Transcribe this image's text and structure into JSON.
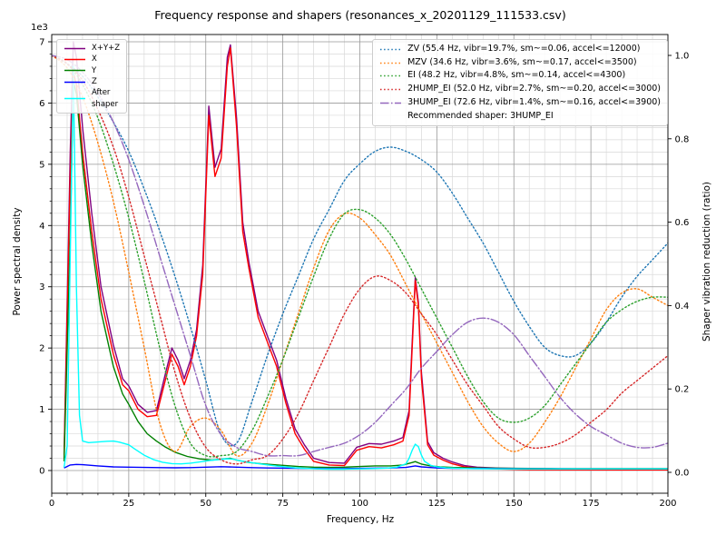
{
  "chart_data": {
    "type": "line",
    "title": "Frequency response and shapers (resonances_x_20201129_111533.csv)",
    "xlabel": "Frequency, Hz",
    "ylabel": "Power spectral density",
    "ylabel_right": "Shaper vibration reduction (ratio)",
    "y_offset_label": "1e3",
    "xlim": [
      0,
      200
    ],
    "ylim_left": [
      0,
      7000
    ],
    "ylim_right": [
      0,
      1.0
    ],
    "x_ticks": [
      0,
      25,
      50,
      75,
      100,
      125,
      150,
      175,
      200
    ],
    "x_minor_step": 5,
    "y_ticks_left": [
      0,
      1,
      2,
      3,
      4,
      5,
      6,
      7
    ],
    "y_left_scale": 1000,
    "y_minor_step_left": 200,
    "y_ticks_right": [
      "0.0",
      "0.2",
      "0.4",
      "0.6",
      "0.8",
      "1.0"
    ],
    "grid": {
      "major_color": "#989898",
      "minor_color": "#d9d9d9"
    },
    "legend_right_note": "Recommended shaper: 3HUMP_EI",
    "psd_series": [
      {
        "name": "sum",
        "label": "X+Y+Z",
        "color": "purple",
        "style": "solid",
        "x": [
          4,
          6,
          7,
          8,
          10,
          13,
          16,
          20,
          23,
          25,
          28,
          31,
          34,
          37,
          39,
          41,
          43,
          45,
          47,
          49,
          51,
          53,
          55,
          57,
          58,
          60,
          62,
          64,
          67,
          70,
          73,
          76,
          79,
          82,
          85,
          90,
          95,
          99,
          103,
          107,
          111,
          114,
          116,
          117,
          118,
          119,
          120,
          122,
          124,
          127,
          130,
          134,
          138,
          145,
          155,
          170,
          185,
          200
        ],
        "y": [
          260,
          5200,
          7000,
          6750,
          5600,
          4200,
          3000,
          2050,
          1500,
          1380,
          1080,
          950,
          980,
          1600,
          2000,
          1800,
          1500,
          1800,
          2300,
          3350,
          5950,
          4950,
          5250,
          6750,
          6950,
          5750,
          4050,
          3400,
          2600,
          2200,
          1800,
          1180,
          680,
          420,
          200,
          130,
          120,
          380,
          440,
          430,
          480,
          540,
          980,
          2100,
          3150,
          2750,
          1600,
          470,
          290,
          200,
          140,
          80,
          55,
          40,
          30,
          25,
          20,
          20
        ]
      },
      {
        "name": "x",
        "label": "X",
        "color": "red",
        "style": "solid",
        "x": [
          4,
          6,
          7,
          8,
          10,
          13,
          16,
          20,
          23,
          25,
          28,
          31,
          34,
          37,
          39,
          41,
          43,
          45,
          47,
          49,
          51,
          53,
          55,
          57,
          58,
          60,
          62,
          64,
          67,
          70,
          73,
          76,
          79,
          82,
          85,
          90,
          95,
          99,
          103,
          107,
          111,
          114,
          116,
          117,
          118,
          119,
          120,
          122,
          124,
          127,
          130,
          134,
          138,
          145,
          155,
          170,
          185,
          200
        ],
        "y": [
          200,
          4800,
          6500,
          6300,
          5200,
          3900,
          2800,
          1900,
          1400,
          1300,
          1000,
          880,
          900,
          1500,
          1900,
          1700,
          1400,
          1700,
          2200,
          3200,
          5800,
          4800,
          5100,
          6600,
          6900,
          5600,
          3900,
          3300,
          2500,
          2100,
          1700,
          1100,
          600,
          350,
          150,
          90,
          80,
          330,
          390,
          370,
          420,
          480,
          900,
          2000,
          3100,
          2700,
          1500,
          420,
          250,
          170,
          110,
          60,
          40,
          25,
          15,
          12,
          10,
          10
        ]
      },
      {
        "name": "y",
        "label": "Y",
        "color": "green",
        "style": "solid",
        "x": [
          4,
          6,
          7,
          8,
          10,
          13,
          16,
          20,
          23,
          25,
          28,
          31,
          34,
          37,
          40,
          44,
          48,
          52,
          56,
          58,
          60,
          64,
          68,
          72,
          76,
          80,
          85,
          90,
          95,
          100,
          105,
          110,
          114,
          117,
          118,
          120,
          123,
          126,
          130,
          140,
          150,
          165,
          180,
          200
        ],
        "y": [
          150,
          3800,
          6350,
          6150,
          5000,
          3700,
          2600,
          1700,
          1250,
          1080,
          800,
          600,
          480,
          380,
          300,
          230,
          190,
          170,
          190,
          200,
          170,
          130,
          110,
          95,
          80,
          65,
          55,
          50,
          55,
          65,
          75,
          75,
          90,
          130,
          145,
          105,
          75,
          60,
          50,
          40,
          35,
          30,
          30,
          30
        ]
      },
      {
        "name": "z",
        "label": "Z",
        "color": "blue",
        "style": "solid",
        "x": [
          4,
          6,
          8,
          10,
          15,
          20,
          25,
          30,
          35,
          40,
          45,
          50,
          55,
          60,
          65,
          70,
          80,
          90,
          100,
          110,
          115,
          118,
          120,
          125,
          130,
          140,
          155,
          170,
          185,
          200
        ],
        "y": [
          40,
          90,
          100,
          95,
          75,
          60,
          55,
          50,
          48,
          45,
          48,
          55,
          62,
          55,
          48,
          42,
          35,
          30,
          35,
          42,
          50,
          75,
          60,
          42,
          36,
          32,
          28,
          26,
          25,
          25
        ]
      },
      {
        "name": "after_shaper",
        "label": "After\nshaper",
        "color": "cyan",
        "style": "solid",
        "x": [
          4,
          5,
          6,
          7,
          8,
          9,
          10,
          12,
          15,
          18,
          20,
          22,
          25,
          27,
          30,
          33,
          36,
          39,
          42,
          45,
          48,
          51,
          54,
          57,
          59,
          61,
          64,
          67,
          70,
          73,
          76,
          79,
          82,
          86,
          90,
          95,
          100,
          105,
          109,
          112,
          115,
          116,
          117,
          118,
          119,
          120,
          121,
          123,
          125,
          128,
          132,
          137,
          145,
          155,
          170,
          185,
          200
        ],
        "y": [
          50,
          400,
          3500,
          6600,
          3000,
          900,
          480,
          455,
          465,
          478,
          480,
          462,
          420,
          350,
          250,
          180,
          135,
          112,
          108,
          120,
          140,
          162,
          178,
          193,
          185,
          160,
          135,
          112,
          92,
          72,
          58,
          45,
          36,
          27,
          22,
          22,
          27,
          33,
          40,
          55,
          110,
          200,
          330,
          430,
          390,
          250,
          150,
          85,
          60,
          45,
          35,
          30,
          27,
          25,
          25,
          25,
          25
        ]
      }
    ],
    "shaper_x": [
      0,
      5,
      10,
      15,
      20,
      25,
      30,
      35,
      40,
      45,
      50,
      55,
      60,
      65,
      70,
      75,
      80,
      85,
      90,
      95,
      100,
      105,
      110,
      115,
      120,
      125,
      130,
      135,
      140,
      145,
      150,
      155,
      160,
      165,
      170,
      175,
      180,
      185,
      190,
      195,
      200
    ],
    "shaper_series": [
      {
        "name": "ZV",
        "label": "ZV (55.4 Hz, vibr=19.7%, sm~=0.06, accel<=12000)",
        "color": "#1f77b4",
        "style": "dotted",
        "y": [
          1.0,
          0.98,
          0.95,
          0.9,
          0.84,
          0.77,
          0.68,
          0.58,
          0.47,
          0.35,
          0.22,
          0.09,
          0.07,
          0.17,
          0.28,
          0.38,
          0.47,
          0.56,
          0.63,
          0.7,
          0.74,
          0.77,
          0.78,
          0.77,
          0.75,
          0.72,
          0.67,
          0.61,
          0.55,
          0.48,
          0.41,
          0.35,
          0.3,
          0.28,
          0.28,
          0.31,
          0.36,
          0.42,
          0.47,
          0.51,
          0.55
        ]
      },
      {
        "name": "MZV",
        "label": "MZV (34.6 Hz, vibr=3.6%, sm~=0.17, accel<=3500)",
        "color": "#ff7f0e",
        "style": "dotted",
        "y": [
          1.0,
          0.97,
          0.9,
          0.79,
          0.65,
          0.48,
          0.3,
          0.12,
          0.05,
          0.11,
          0.13,
          0.1,
          0.04,
          0.07,
          0.16,
          0.27,
          0.38,
          0.49,
          0.58,
          0.62,
          0.61,
          0.57,
          0.52,
          0.45,
          0.38,
          0.31,
          0.24,
          0.17,
          0.11,
          0.07,
          0.05,
          0.07,
          0.12,
          0.18,
          0.25,
          0.32,
          0.39,
          0.43,
          0.44,
          0.42,
          0.4
        ]
      },
      {
        "name": "EI",
        "label": "EI (48.2 Hz, vibr=4.8%, sm~=0.14, accel<=4300)",
        "color": "#2ca02c",
        "style": "dotted",
        "y": [
          1.0,
          0.98,
          0.93,
          0.85,
          0.74,
          0.61,
          0.46,
          0.3,
          0.16,
          0.07,
          0.04,
          0.04,
          0.05,
          0.1,
          0.18,
          0.27,
          0.37,
          0.47,
          0.56,
          0.62,
          0.63,
          0.61,
          0.57,
          0.51,
          0.44,
          0.37,
          0.3,
          0.23,
          0.17,
          0.13,
          0.12,
          0.13,
          0.16,
          0.21,
          0.26,
          0.31,
          0.36,
          0.39,
          0.41,
          0.42,
          0.42
        ]
      },
      {
        "name": "2HUMP_EI",
        "label": "2HUMP_EI (52.0 Hz, vibr=2.7%, sm~=0.20, accel<=3000)",
        "color": "#d62728",
        "style": "dotted",
        "y": [
          1.0,
          0.98,
          0.94,
          0.87,
          0.78,
          0.66,
          0.52,
          0.38,
          0.24,
          0.13,
          0.06,
          0.03,
          0.02,
          0.03,
          0.04,
          0.08,
          0.14,
          0.22,
          0.3,
          0.38,
          0.44,
          0.47,
          0.46,
          0.43,
          0.38,
          0.33,
          0.27,
          0.21,
          0.16,
          0.11,
          0.08,
          0.06,
          0.06,
          0.07,
          0.09,
          0.12,
          0.15,
          0.19,
          0.22,
          0.25,
          0.28
        ]
      },
      {
        "name": "3HUMP_EI",
        "label": "3HUMP_EI (72.6 Hz, vibr=1.4%, sm~=0.16, accel<=3900)",
        "color": "#9467bd",
        "style": "dashdot",
        "y": [
          1.0,
          0.99,
          0.96,
          0.91,
          0.84,
          0.75,
          0.64,
          0.52,
          0.4,
          0.28,
          0.16,
          0.09,
          0.06,
          0.05,
          0.04,
          0.04,
          0.04,
          0.05,
          0.06,
          0.07,
          0.09,
          0.12,
          0.16,
          0.2,
          0.25,
          0.29,
          0.33,
          0.36,
          0.37,
          0.36,
          0.33,
          0.28,
          0.23,
          0.18,
          0.14,
          0.11,
          0.09,
          0.07,
          0.06,
          0.06,
          0.07
        ]
      }
    ]
  }
}
